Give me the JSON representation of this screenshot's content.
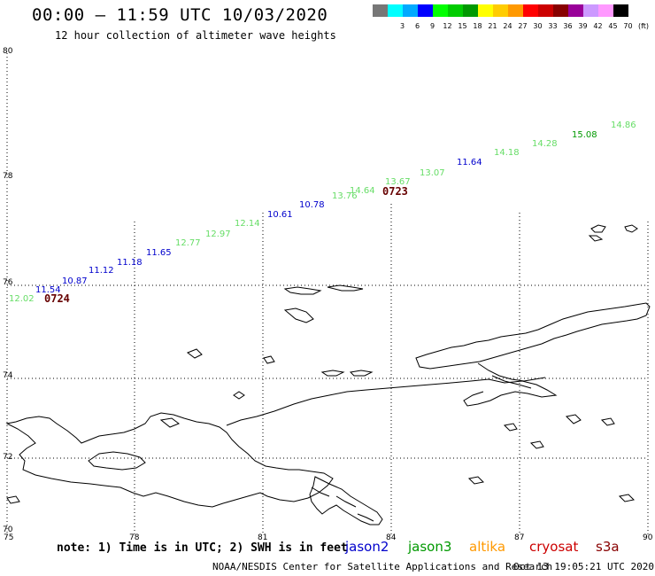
{
  "header": {
    "title": "00:00 – 11:59 UTC 10/03/2020",
    "subtitle": "12 hour collection of altimeter wave heights"
  },
  "colorbar": {
    "unit": "(ft)",
    "bins": [
      {
        "color": "#777777",
        "label": ""
      },
      {
        "color": "#00ffff",
        "label": "3"
      },
      {
        "color": "#00aaff",
        "label": "6"
      },
      {
        "color": "#0000ff",
        "label": "9"
      },
      {
        "color": "#00ff00",
        "label": "12"
      },
      {
        "color": "#00cc00",
        "label": "15"
      },
      {
        "color": "#009900",
        "label": "18"
      },
      {
        "color": "#ffff00",
        "label": "21"
      },
      {
        "color": "#ffcc00",
        "label": "24"
      },
      {
        "color": "#ff9900",
        "label": "27"
      },
      {
        "color": "#ff0000",
        "label": "30"
      },
      {
        "color": "#cc0000",
        "label": "33"
      },
      {
        "color": "#880000",
        "label": "36"
      },
      {
        "color": "#990099",
        "label": "39"
      },
      {
        "color": "#cc99ff",
        "label": "42"
      },
      {
        "color": "#ff99ff",
        "label": "45"
      },
      {
        "color": "#000000",
        "label": "70"
      }
    ]
  },
  "axes": {
    "x_ticks": [
      "75",
      "78",
      "81",
      "84",
      "87",
      "90"
    ],
    "y_ticks": [
      "80",
      "78",
      "76",
      "74",
      "72",
      "70"
    ]
  },
  "track": {
    "labels": [
      {
        "text": "12.02",
        "color": "#66dd66"
      },
      {
        "text": "11.54",
        "color": "#0000cc"
      },
      {
        "text": "10.87",
        "color": "#0000cc"
      },
      {
        "text": "11.12",
        "color": "#0000cc"
      },
      {
        "text": "11.18",
        "color": "#0000cc"
      },
      {
        "text": "11.65",
        "color": "#0000cc"
      },
      {
        "text": "12.77",
        "color": "#66dd66"
      },
      {
        "text": "12.97",
        "color": "#66dd66"
      },
      {
        "text": "12.14",
        "color": "#66dd66"
      },
      {
        "text": "10.61",
        "color": "#0000cc"
      },
      {
        "text": "10.78",
        "color": "#0000cc"
      },
      {
        "text": "13.76",
        "color": "#66dd66"
      },
      {
        "text": "14.64",
        "color": "#66dd66"
      },
      {
        "text": "13.67",
        "color": "#66dd66"
      },
      {
        "text": "13.07",
        "color": "#66dd66"
      },
      {
        "text": "11.64",
        "color": "#0000cc"
      },
      {
        "text": "14.18",
        "color": "#66dd66"
      },
      {
        "text": "14.28",
        "color": "#66dd66"
      },
      {
        "text": "15.08",
        "color": "#009900"
      },
      {
        "text": "14.86",
        "color": "#66dd66"
      }
    ],
    "times": [
      "0724",
      "0723"
    ]
  },
  "footer": {
    "note": "note:  1) Time is in UTC;  2) SWH is in feet",
    "satellites": [
      {
        "name": "jason2",
        "color": "#0000cc"
      },
      {
        "name": "jason3",
        "color": "#009900"
      },
      {
        "name": "altika",
        "color": "#ff9900"
      },
      {
        "name": "cryosat",
        "color": "#cc0000"
      },
      {
        "name": "s3a",
        "color": "#880000"
      }
    ],
    "credit": "NOAA/NESDIS Center for Satellite Applications and Research",
    "timestamp": "Oct 13 19:05:21 UTC 2020"
  }
}
